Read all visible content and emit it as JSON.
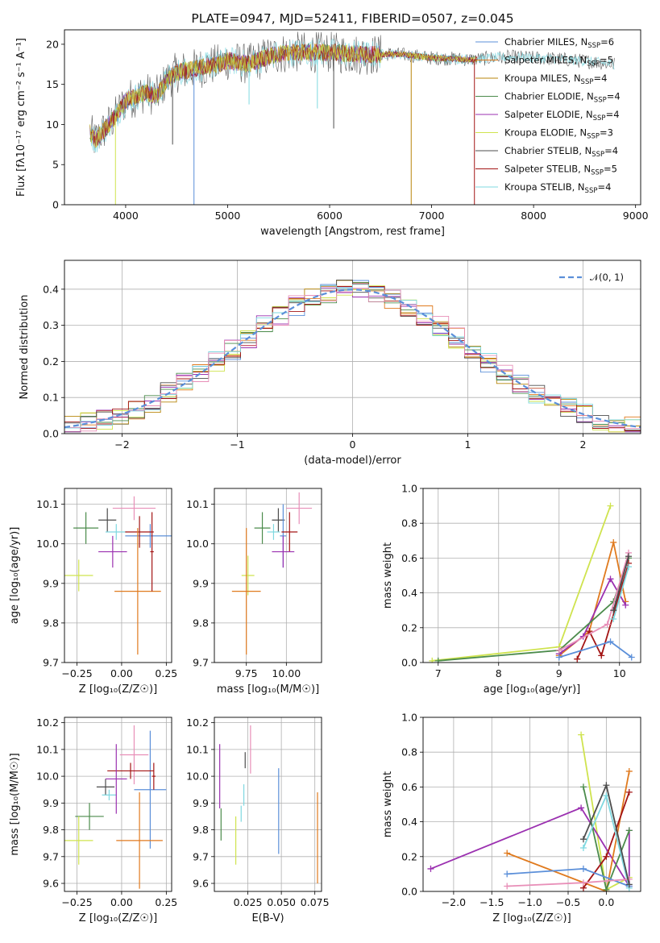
{
  "series_colors": [
    "#5b8fd9",
    "#e07a1e",
    "#b8860b",
    "#4b8b4b",
    "#9b30b0",
    "#cfe34e",
    "#4d4d4d",
    "#a31515",
    "#7fd8e0",
    "#e88fb8"
  ],
  "chart_data": [
    {
      "id": "spectrum",
      "type": "line",
      "title": "PLATE=0947, MJD=52411, FIBERID=0507, z=0.045",
      "xlabel": "wavelength [Angstrom, rest frame]",
      "ylabel": "Flux [fλ10⁻¹⁷ erg cm⁻² s⁻¹ A⁻¹]",
      "xlim": [
        3400,
        9050
      ],
      "ylim": [
        0,
        21.8
      ],
      "xticks": [
        "4000",
        "5000",
        "6000",
        "7000",
        "8000",
        "9000"
      ],
      "yticks": [
        "0",
        "5",
        "10",
        "15",
        "20"
      ],
      "legend_position": "upper right",
      "legend": [
        {
          "label": "Chabrier MILES, N",
          "sub": "SSP",
          "suffix": "=6",
          "color": "#5b8fd9"
        },
        {
          "label": "Salpeter MILES, N",
          "sub": "SSP",
          "suffix": "=5",
          "color": "#e07a1e"
        },
        {
          "label": "Kroupa MILES, N",
          "sub": "SSP",
          "suffix": "=4",
          "color": "#b8860b"
        },
        {
          "label": "Chabrier ELODIE, N",
          "sub": "SSP",
          "suffix": "=4",
          "color": "#4b8b4b"
        },
        {
          "label": "Salpeter ELODIE, N",
          "sub": "SSP",
          "suffix": "=4",
          "color": "#9b30b0"
        },
        {
          "label": "Kroupa ELODIE, N",
          "sub": "SSP",
          "suffix": "=3",
          "color": "#cfe34e"
        },
        {
          "label": "Chabrier STELIB, N",
          "sub": "SSP",
          "suffix": "=4",
          "color": "#4d4d4d"
        },
        {
          "label": "Salpeter STELIB, N",
          "sub": "SSP",
          "suffix": "=5",
          "color": "#a31515"
        },
        {
          "label": "Kroupa STELIB, N",
          "sub": "SSP",
          "suffix": "=4",
          "color": "#7fd8e0"
        }
      ],
      "continuum": [
        [
          3650,
          9
        ],
        [
          3700,
          8
        ],
        [
          3800,
          9.5
        ],
        [
          3900,
          11
        ],
        [
          4000,
          13
        ],
        [
          4100,
          13.5
        ],
        [
          4200,
          14
        ],
        [
          4300,
          13.5
        ],
        [
          4400,
          15.5
        ],
        [
          4500,
          16.5
        ],
        [
          4700,
          17
        ],
        [
          4900,
          17.5
        ],
        [
          5000,
          18
        ],
        [
          5200,
          17.5
        ],
        [
          5400,
          18.5
        ],
        [
          5600,
          19
        ],
        [
          5800,
          19
        ],
        [
          6000,
          19
        ],
        [
          6200,
          18.8
        ],
        [
          6400,
          18.7
        ],
        [
          6600,
          18.8
        ],
        [
          6800,
          18.6
        ],
        [
          7000,
          18.3
        ],
        [
          7200,
          18.2
        ],
        [
          7400,
          18.1
        ],
        [
          7600,
          18.3
        ],
        [
          7800,
          18.4
        ],
        [
          8000,
          18.3
        ],
        [
          8200,
          18.2
        ],
        [
          8400,
          18.0
        ],
        [
          8600,
          17.8
        ],
        [
          8800,
          17.5
        ]
      ],
      "spikes": [
        [
          3900,
          0,
          "#cfe34e"
        ],
        [
          4670,
          0,
          "#5b8fd9"
        ],
        [
          5210,
          12.5,
          "#7fd8e0"
        ],
        [
          5880,
          12,
          "#7fd8e0"
        ],
        [
          6040,
          9.5,
          "#4d4d4d"
        ],
        [
          6800,
          0,
          "#b8860b"
        ],
        [
          7420,
          0,
          "#a31515"
        ],
        [
          4460,
          7.5,
          "#4d4d4d"
        ]
      ]
    },
    {
      "id": "residuals",
      "type": "step",
      "xlabel": "(data-model)/error",
      "ylabel": "Normed distribution",
      "xlim": [
        -2.5,
        2.5
      ],
      "ylim": [
        0,
        0.48
      ],
      "xticks": [
        "−2",
        "−1",
        "0",
        "1",
        "2"
      ],
      "yticks": [
        "0.0",
        "0.1",
        "0.2",
        "0.3",
        "0.4"
      ],
      "legend": "𝒩(0, 1)",
      "legend_position": "upper right"
    },
    {
      "id": "age-vs-Z",
      "type": "errorbar",
      "xlabel": "Z [log₁₀(Z/Z☉)]",
      "ylabel": "age  [log₁₀(age/yr)]",
      "xlim": [
        -0.32,
        0.28
      ],
      "ylim": [
        9.7,
        10.14
      ],
      "xticks": [
        "−0.25",
        "0.00",
        "0.25"
      ],
      "yticks": [
        "9.7",
        "9.8",
        "9.9",
        "10.0",
        "10.1"
      ],
      "points": [
        {
          "x": -0.2,
          "xerr": 0.07,
          "y": 10.04,
          "yerr": 0.04,
          "color": "#4b8b4b"
        },
        {
          "x": -0.08,
          "xerr": 0.05,
          "y": 10.06,
          "yerr": 0.03,
          "color": "#4d4d4d"
        },
        {
          "x": -0.03,
          "xerr": 0.06,
          "y": 10.03,
          "yerr": 0.02,
          "color": "#7fd8e0"
        },
        {
          "x": 0.07,
          "xerr": 0.12,
          "y": 10.09,
          "yerr": 0.03,
          "color": "#e88fb8"
        },
        {
          "x": 0.16,
          "xerr": 0.14,
          "y": 10.02,
          "yerr": 0.03,
          "color": "#5b8fd9"
        },
        {
          "x": 0.1,
          "xerr": 0.08,
          "y": 10.03,
          "yerr": 0.04,
          "color": "#a31515"
        },
        {
          "x": -0.05,
          "xerr": 0.08,
          "y": 9.98,
          "yerr": 0.04,
          "color": "#9b30b0"
        },
        {
          "x": -0.24,
          "xerr": 0.08,
          "y": 9.92,
          "yerr": 0.04,
          "color": "#cfe34e"
        },
        {
          "x": 0.09,
          "xerr": 0.13,
          "y": 9.88,
          "yerr": 0.16,
          "color": "#e07a1e"
        },
        {
          "x": 0.17,
          "xerr": 0.01,
          "y": 9.98,
          "yerr": 0.1,
          "color": "#a31515"
        }
      ]
    },
    {
      "id": "age-vs-mass",
      "type": "errorbar",
      "xlabel": "mass [log₁₀(M/M☉)]",
      "ylabel": "",
      "xlim": [
        9.55,
        10.22
      ],
      "ylim": [
        9.7,
        10.14
      ],
      "xticks": [
        "9.75",
        "10.00"
      ],
      "yticks": [
        "9.7",
        "9.8",
        "9.9",
        "10.0",
        "10.1"
      ],
      "points": [
        {
          "x": 9.85,
          "xerr": 0.05,
          "y": 10.04,
          "yerr": 0.04,
          "color": "#4b8b4b"
        },
        {
          "x": 9.95,
          "xerr": 0.04,
          "y": 10.06,
          "yerr": 0.03,
          "color": "#4d4d4d"
        },
        {
          "x": 9.92,
          "xerr": 0.04,
          "y": 10.03,
          "yerr": 0.02,
          "color": "#7fd8e0"
        },
        {
          "x": 10.08,
          "xerr": 0.08,
          "y": 10.09,
          "yerr": 0.04,
          "color": "#e88fb8"
        },
        {
          "x": 9.98,
          "xerr": 0.02,
          "y": 10.02,
          "yerr": 0.08,
          "color": "#5b8fd9"
        },
        {
          "x": 10.02,
          "xerr": 0.05,
          "y": 10.03,
          "yerr": 0.05,
          "color": "#a31515"
        },
        {
          "x": 9.98,
          "xerr": 0.07,
          "y": 9.98,
          "yerr": 0.04,
          "color": "#9b30b0"
        },
        {
          "x": 9.76,
          "xerr": 0.04,
          "y": 9.92,
          "yerr": 0.05,
          "color": "#cfe34e"
        },
        {
          "x": 9.75,
          "xerr": 0.09,
          "y": 9.88,
          "yerr": 0.16,
          "color": "#e07a1e"
        }
      ]
    },
    {
      "id": "weight-vs-age",
      "type": "line",
      "xlabel": "age  [log₁₀(age/yr)]",
      "ylabel": "mass weight",
      "xlim": [
        6.75,
        10.35
      ],
      "ylim": [
        0,
        1.0
      ],
      "xticks": [
        "7",
        "8",
        "9",
        "10"
      ],
      "yticks": [
        "0.0",
        "0.2",
        "0.4",
        "0.6",
        "0.8",
        "1.0"
      ],
      "series": [
        {
          "color": "#cfe34e",
          "points": [
            [
              6.9,
              0.01
            ],
            [
              9.0,
              0.09
            ],
            [
              9.85,
              0.9
            ]
          ]
        },
        {
          "color": "#e07a1e",
          "points": [
            [
              9.0,
              0.04
            ],
            [
              9.5,
              0.18
            ],
            [
              9.9,
              0.69
            ],
            [
              10.1,
              0.35
            ]
          ]
        },
        {
          "color": "#9b30b0",
          "points": [
            [
              9.0,
              0.05
            ],
            [
              9.4,
              0.15
            ],
            [
              9.85,
              0.48
            ],
            [
              10.1,
              0.33
            ]
          ]
        },
        {
          "color": "#4b8b4b",
          "points": [
            [
              7.0,
              0.01
            ],
            [
              9.0,
              0.07
            ],
            [
              9.9,
              0.35
            ],
            [
              10.15,
              0.6
            ]
          ]
        },
        {
          "color": "#a31515",
          "points": [
            [
              9.3,
              0.02
            ],
            [
              9.5,
              0.18
            ],
            [
              9.7,
              0.04
            ],
            [
              10.15,
              0.57
            ]
          ]
        },
        {
          "color": "#5b8fd9",
          "points": [
            [
              9.0,
              0.03
            ],
            [
              9.85,
              0.12
            ],
            [
              10.2,
              0.03
            ]
          ]
        },
        {
          "color": "#7fd8e0",
          "points": [
            [
              9.9,
              0.25
            ],
            [
              10.15,
              0.55
            ]
          ]
        },
        {
          "color": "#e88fb8",
          "points": [
            [
              9.0,
              0.07
            ],
            [
              9.8,
              0.22
            ],
            [
              10.15,
              0.63
            ]
          ]
        },
        {
          "color": "#4d4d4d",
          "points": [
            [
              9.9,
              0.3
            ],
            [
              10.15,
              0.61
            ]
          ]
        }
      ]
    },
    {
      "id": "mass-vs-Z",
      "type": "errorbar",
      "xlabel": "Z [log₁₀(Z/Z☉)]",
      "ylabel": "mass [log₁₀(M/M☉)]",
      "xlim": [
        -0.32,
        0.28
      ],
      "ylim": [
        9.57,
        10.22
      ],
      "xticks": [
        "−0.25",
        "0.00",
        "0.25"
      ],
      "yticks": [
        "9.6",
        "9.7",
        "9.8",
        "9.9",
        "10.0",
        "10.1",
        "10.2"
      ],
      "points": [
        {
          "x": -0.18,
          "xerr": 0.08,
          "y": 9.85,
          "yerr": 0.05,
          "color": "#4b8b4b"
        },
        {
          "x": -0.09,
          "xerr": 0.05,
          "y": 9.96,
          "yerr": 0.03,
          "color": "#4d4d4d"
        },
        {
          "x": -0.07,
          "xerr": 0.04,
          "y": 9.93,
          "yerr": 0.02,
          "color": "#7fd8e0"
        },
        {
          "x": 0.07,
          "xerr": 0.08,
          "y": 10.08,
          "yerr": 0.11,
          "color": "#e88fb8"
        },
        {
          "x": 0.16,
          "xerr": 0.09,
          "y": 9.95,
          "yerr": 0.22,
          "color": "#5b8fd9"
        },
        {
          "x": 0.05,
          "xerr": 0.13,
          "y": 10.02,
          "yerr": 0.03,
          "color": "#a31515"
        },
        {
          "x": -0.03,
          "xerr": 0.06,
          "y": 9.99,
          "yerr": 0.13,
          "color": "#9b30b0"
        },
        {
          "x": -0.24,
          "xerr": 0.08,
          "y": 9.76,
          "yerr": 0.09,
          "color": "#cfe34e"
        },
        {
          "x": 0.1,
          "xerr": 0.13,
          "y": 9.76,
          "yerr": 0.18,
          "color": "#e07a1e"
        },
        {
          "x": 0.18,
          "xerr": 0.01,
          "y": 10.0,
          "yerr": 0.05,
          "color": "#a31515"
        }
      ]
    },
    {
      "id": "mass-vs-EBV",
      "type": "errorbar",
      "xlabel": "E(B-V)",
      "ylabel": "",
      "xlim": [
        0.0,
        0.08
      ],
      "ylim": [
        9.57,
        10.22
      ],
      "xticks": [
        "0.025",
        "0.050",
        "0.075"
      ],
      "yticks": [
        "9.6",
        "9.7",
        "9.8",
        "9.9",
        "10.0",
        "10.1",
        "10.2"
      ],
      "points": [
        {
          "x": 0.004,
          "y": 10.0,
          "yerr": 0.12,
          "color": "#9b30b0"
        },
        {
          "x": 0.005,
          "y": 9.82,
          "yerr": 0.06,
          "color": "#4b8b4b"
        },
        {
          "x": 0.016,
          "y": 9.76,
          "yerr": 0.09,
          "color": "#cfe34e"
        },
        {
          "x": 0.02,
          "y": 9.86,
          "yerr": 0.03,
          "color": "#7fd8e0"
        },
        {
          "x": 0.022,
          "y": 9.93,
          "yerr": 0.04,
          "color": "#7fd8e0"
        },
        {
          "x": 0.023,
          "y": 10.06,
          "yerr": 0.03,
          "color": "#4d4d4d"
        },
        {
          "x": 0.027,
          "y": 10.1,
          "yerr": 0.09,
          "color": "#e88fb8"
        },
        {
          "x": 0.048,
          "y": 9.87,
          "yerr": 0.16,
          "color": "#5b8fd9"
        },
        {
          "x": 0.077,
          "y": 9.77,
          "yerr": 0.17,
          "color": "#e07a1e"
        }
      ]
    },
    {
      "id": "weight-vs-Z",
      "type": "line",
      "xlabel": "Z [log₁₀(Z/Z☉)]",
      "ylabel": "mass weight",
      "xlim": [
        -2.4,
        0.45
      ],
      "ylim": [
        0,
        1.0
      ],
      "xticks": [
        "−2.0",
        "−1.5",
        "−1.0",
        "−0.5",
        "0.0"
      ],
      "yticks": [
        "0.0",
        "0.2",
        "0.4",
        "0.6",
        "0.8",
        "1.0"
      ],
      "series": [
        {
          "color": "#cfe34e",
          "points": [
            [
              -0.33,
              0.9
            ],
            [
              0.0,
              0.01
            ],
            [
              0.3,
              0.08
            ]
          ]
        },
        {
          "color": "#9b30b0",
          "points": [
            [
              -2.3,
              0.13
            ],
            [
              -0.33,
              0.48
            ],
            [
              0.3,
              0.03
            ],
            [
              0.3,
              0.35
            ]
          ]
        },
        {
          "color": "#e07a1e",
          "points": [
            [
              -1.3,
              0.22
            ],
            [
              0.0,
              0.0
            ],
            [
              0.3,
              0.69
            ]
          ]
        },
        {
          "color": "#4b8b4b",
          "points": [
            [
              -0.3,
              0.6
            ],
            [
              0.0,
              0.01
            ],
            [
              0.3,
              0.35
            ]
          ]
        },
        {
          "color": "#a31515",
          "points": [
            [
              -0.3,
              0.02
            ],
            [
              0.0,
              0.2
            ],
            [
              0.3,
              0.57
            ]
          ]
        },
        {
          "color": "#5b8fd9",
          "points": [
            [
              -1.3,
              0.1
            ],
            [
              -0.3,
              0.13
            ],
            [
              0.3,
              0.03
            ]
          ]
        },
        {
          "color": "#7fd8e0",
          "points": [
            [
              -0.3,
              0.25
            ],
            [
              0.0,
              0.55
            ],
            [
              0.3,
              0.02
            ]
          ]
        },
        {
          "color": "#e88fb8",
          "points": [
            [
              -1.3,
              0.03
            ],
            [
              -0.3,
              0.05
            ],
            [
              0.3,
              0.07
            ]
          ]
        },
        {
          "color": "#4d4d4d",
          "points": [
            [
              -0.3,
              0.3
            ],
            [
              0.0,
              0.61
            ],
            [
              0.3,
              0.04
            ]
          ]
        }
      ]
    }
  ]
}
